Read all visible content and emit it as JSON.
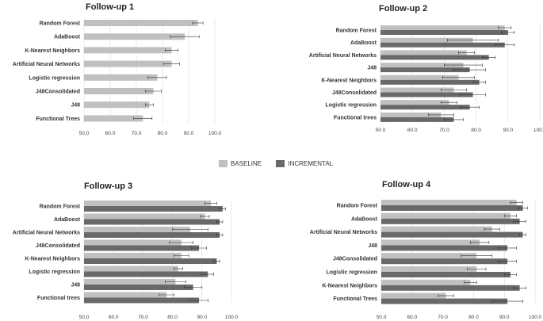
{
  "colors": {
    "baseline": "#c0c0c0",
    "incremental": "#696969",
    "grid": "#d9d9d9",
    "error": "#333333"
  },
  "legend": {
    "baseline": "BASELINE",
    "incremental": "INCREMENTAL"
  },
  "chart_data": [
    {
      "type": "bar",
      "title": "Follow-up 1",
      "categories": [
        "Random Forest",
        "AdaBoost",
        "K-Nearest Neighbors",
        "Artificial Neural Networks",
        "Logistic regression",
        "J48Consolidated",
        "J48",
        "Functional Trees"
      ],
      "series": [
        {
          "name": "BASELINE",
          "values": [
            93.5,
            88.5,
            83.5,
            83.5,
            78,
            76.5,
            75,
            72.5
          ],
          "errors": [
            2,
            5.5,
            2.5,
            3,
            3.5,
            3,
            1.5,
            3.5
          ]
        }
      ],
      "xlim": [
        50,
        100
      ],
      "xticks": [
        "50.0",
        "60.0",
        "70.0",
        "80.0",
        "90.0",
        "100.0"
      ],
      "grid": true
    },
    {
      "type": "bar",
      "title": "Follow-up 2",
      "categories": [
        "Random Forest",
        "AdaBoost",
        "Artificial Neural Networks",
        "J48",
        "K-Nearest Neighbors",
        "J48Consolidated",
        "Logistic regression",
        "Functional trees"
      ],
      "series": [
        {
          "name": "BASELINE",
          "values": [
            89,
            79,
            77,
            76,
            74.5,
            73,
            71.5,
            69
          ],
          "errors": [
            2,
            8,
            2.5,
            6,
            5,
            4,
            2.5,
            4
          ]
        },
        {
          "name": "INCREMENTAL",
          "values": [
            90,
            89,
            84,
            78,
            81,
            79,
            78,
            73
          ],
          "errors": [
            2,
            3,
            2,
            5,
            2,
            4,
            3,
            3
          ]
        }
      ],
      "xlim": [
        50,
        100
      ],
      "xticks": [
        "50.0",
        "60.0",
        "70.0",
        "80.0",
        "90.0",
        "100.0"
      ],
      "grid": true
    },
    {
      "type": "bar",
      "title": "Follow-up 3",
      "categories": [
        "Random Forest",
        "AdaBoost",
        "Artificial Neural Networks",
        "J48Consolidated",
        "K-Nearest Neighbors",
        "Logistic regression",
        "J48",
        "Functional trees"
      ],
      "series": [
        {
          "name": "BASELINE",
          "values": [
            93,
            91,
            86,
            83,
            83,
            82,
            81,
            78
          ],
          "errors": [
            2,
            1.5,
            6,
            4,
            2.5,
            1.5,
            3.5,
            2.5
          ]
        },
        {
          "name": "INCREMENTAL",
          "values": [
            97,
            96,
            96,
            89,
            95,
            92,
            87,
            89
          ],
          "errors": [
            1,
            1,
            1,
            2.5,
            1,
            2,
            3,
            3
          ]
        }
      ],
      "xlim": [
        50,
        100
      ],
      "xticks": [
        "50.0",
        "60.0",
        "70.0",
        "80.0",
        "90.0",
        "100.0"
      ],
      "grid": true
    },
    {
      "type": "bar",
      "title": "Follow-up 4",
      "categories": [
        "Random Forest",
        "AdaBoost",
        "Artificial Neural Networks",
        "J48",
        "J48Consolidated",
        "Logistic regression",
        "K-Nearest Neighbors",
        "Functional Trees"
      ],
      "series": [
        {
          "name": "BASELINE",
          "values": [
            94,
            92,
            86,
            82,
            81,
            81,
            79,
            71
          ],
          "errors": [
            2,
            2,
            2.5,
            3,
            5,
            3,
            2,
            2.5
          ]
        },
        {
          "name": "INCREMENTAL",
          "values": [
            96,
            95,
            96,
            91,
            91,
            92,
            95,
            91
          ],
          "errors": [
            1.5,
            2,
            1,
            3,
            3,
            2,
            2,
            5
          ]
        }
      ],
      "xlim": [
        50,
        100
      ],
      "xticks": [
        "50.0",
        "60.0",
        "70.0",
        "80.0",
        "90.0",
        "100.0"
      ],
      "grid": true
    }
  ]
}
